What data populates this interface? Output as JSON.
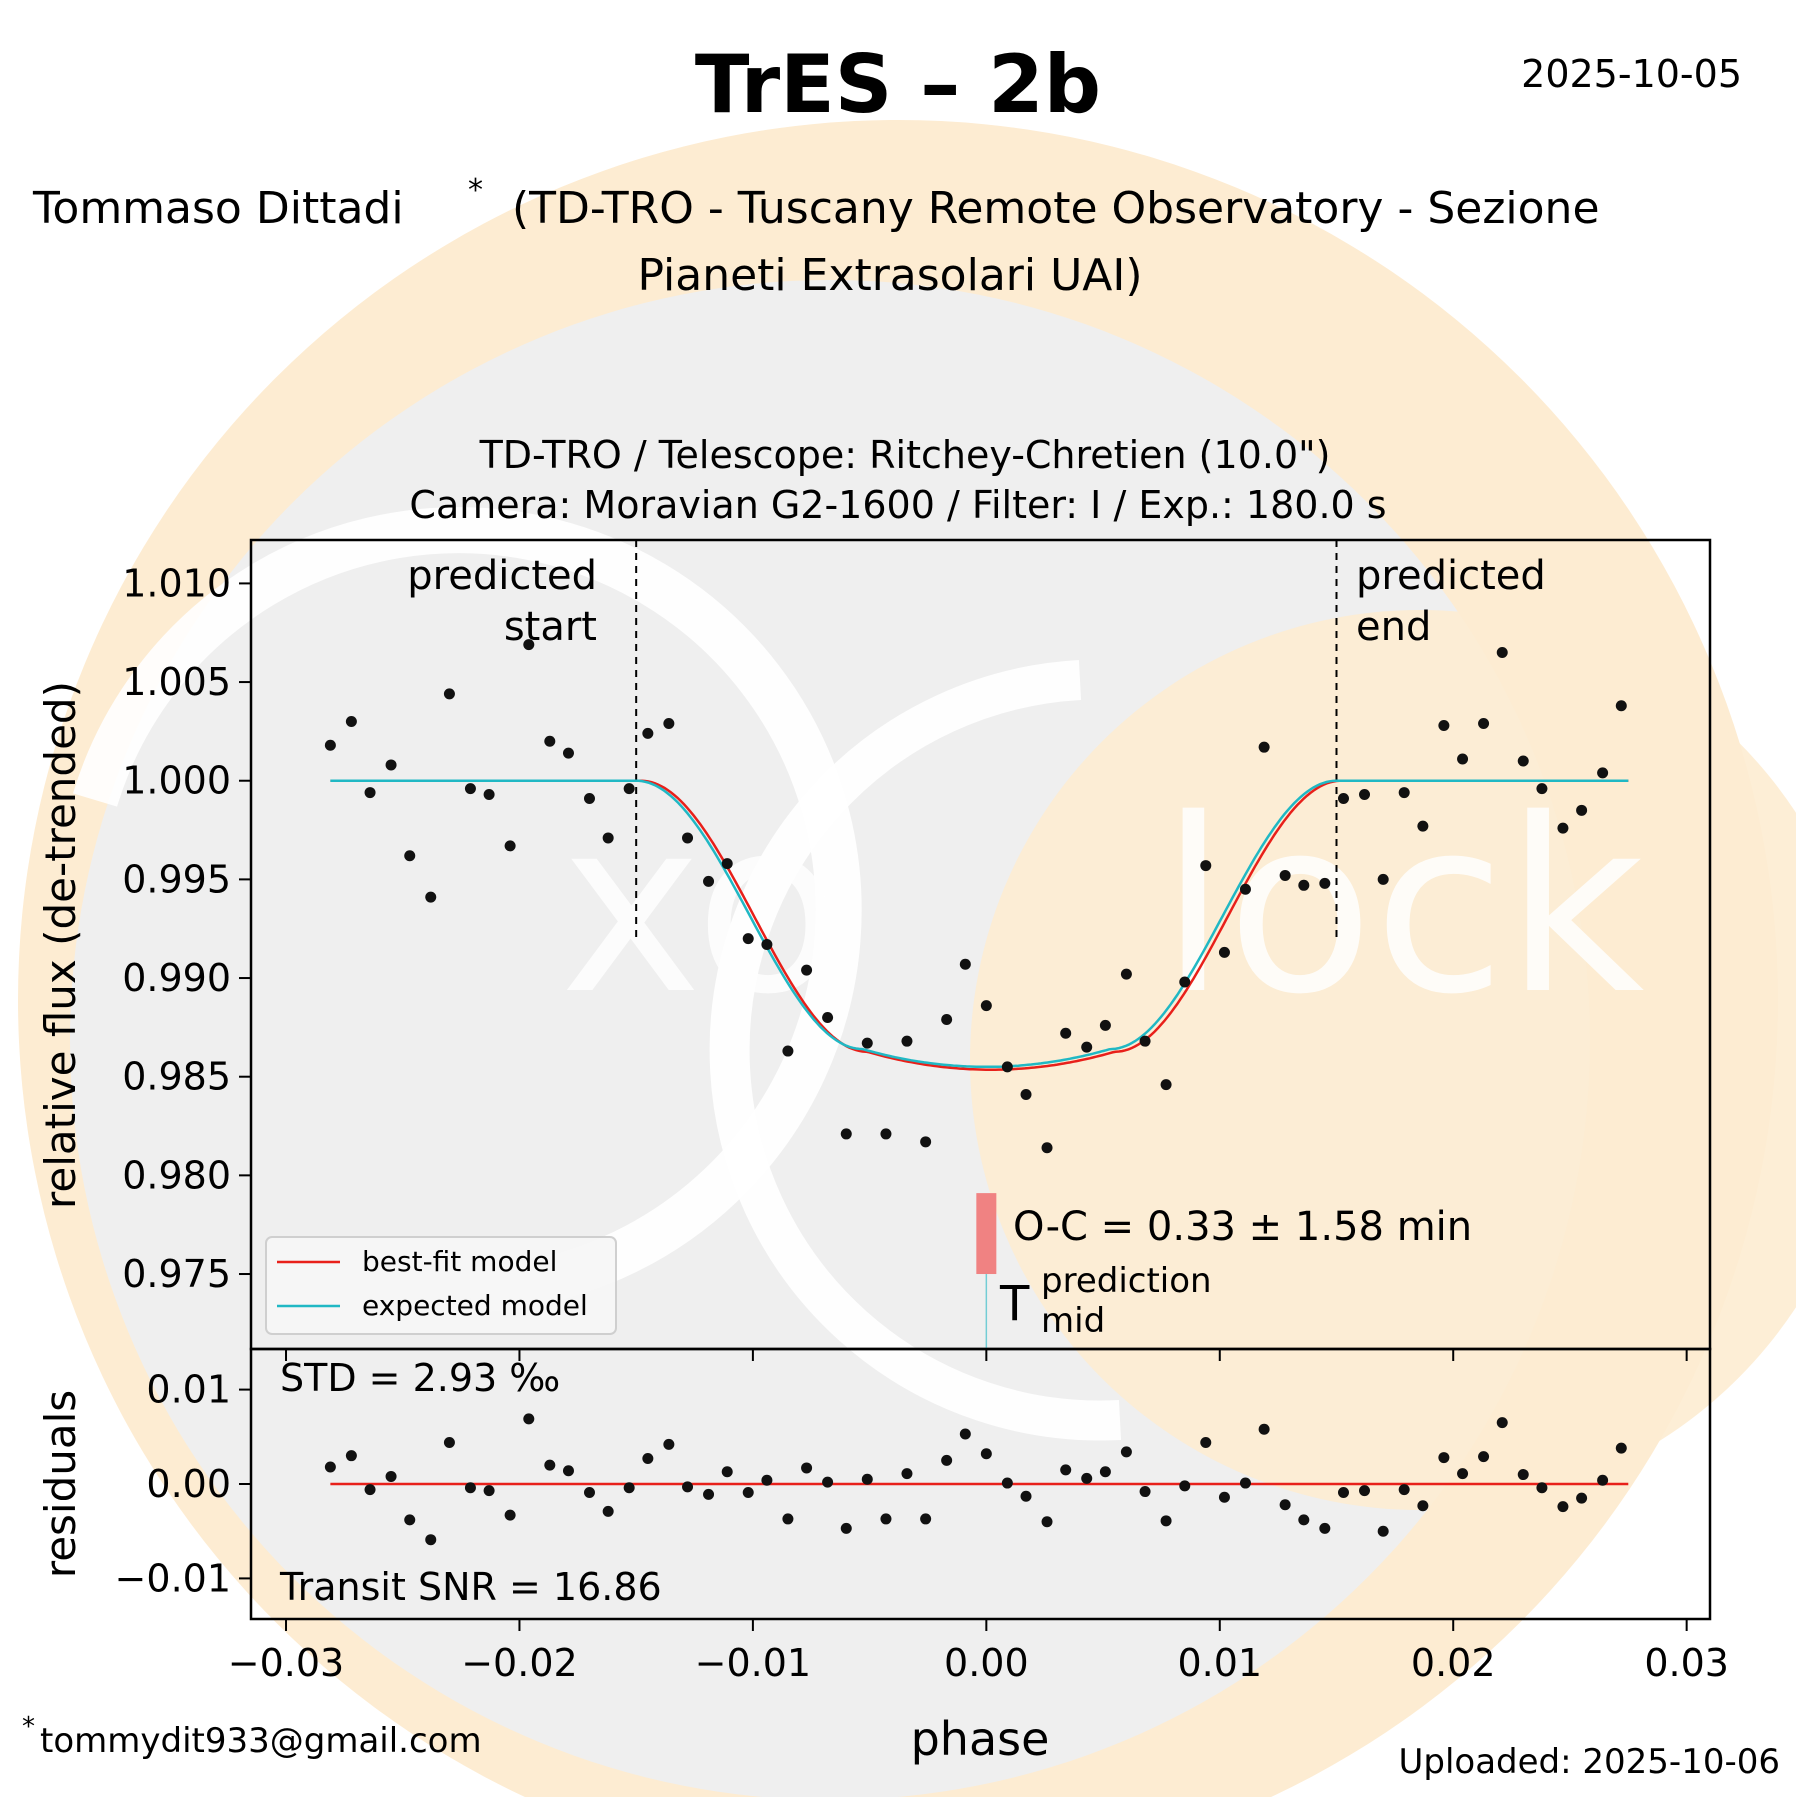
{
  "header": {
    "title": "TrES – 2b",
    "date": "2025-10-05",
    "observer_line1": "Tommaso Dittadi",
    "observer_star": "*",
    "observer_affil_line1": "(TD-TRO - Tuscany Remote Observatory - Sezione",
    "observer_affil_line2": "Pianeti Extrasolari UAI)"
  },
  "footer": {
    "email_star": "*",
    "email": "tommydit933@gmail.com",
    "uploaded": "Uploaded: 2025-10-06"
  },
  "colors": {
    "best_fit": "#e8201a",
    "expected": "#20b8c4",
    "points": "#111111",
    "oc_bar": "#f08282",
    "plot_bg": "#efefef",
    "halo": "#fdecd2"
  },
  "chart_data": {
    "type": "scatter",
    "subtitle_line1": "TD-TRO / Telescope: Ritchey-Chretien (10.0\")",
    "subtitle_line2": "Camera: Moravian G2-1600 / Filter: I / Exp.: 180.0 s",
    "xlabel": "phase",
    "ylabel_top": "relative flux (de-trended)",
    "ylabel_bottom": "residuals",
    "xlim": [
      -0.0315,
      0.031
    ],
    "ylim_top": [
      0.9712,
      1.0122
    ],
    "ylim_bottom": [
      -0.0143,
      0.0143
    ],
    "x_ticks": [
      -0.03,
      -0.02,
      -0.01,
      0.0,
      0.01,
      0.02,
      0.03
    ],
    "x_tick_labels": [
      "−0.03",
      "−0.02",
      "−0.01",
      "0.00",
      "0.01",
      "0.02",
      "0.03"
    ],
    "y_ticks_top": [
      0.975,
      0.98,
      0.985,
      0.99,
      0.995,
      1.0,
      1.005,
      1.01
    ],
    "y_tick_labels_top": [
      "0.975",
      "0.980",
      "0.985",
      "0.990",
      "0.995",
      "1.000",
      "1.005",
      "1.010"
    ],
    "y_ticks_bottom": [
      -0.01,
      0.0,
      0.01
    ],
    "y_tick_labels_bottom": [
      "−0.01",
      "0.00",
      "0.01"
    ],
    "predicted_start": -0.015,
    "predicted_end": 0.015,
    "predicted_start_label": [
      "predicted",
      "start"
    ],
    "predicted_end_label": [
      "predicted",
      "end"
    ],
    "oc_text": "O-C = 0.33 ± 1.58 min",
    "oc_bar_flux_range": [
      0.975,
      0.9791
    ],
    "tmid_label_main": "T",
    "tmid_label_sup": "prediction",
    "tmid_label_sub": "mid",
    "std_text": "STD = 2.93 ‰",
    "snr_text": "Transit SNR = 16.86",
    "legend": [
      {
        "name": "best-fit model",
        "color": "#e8201a"
      },
      {
        "name": "expected model",
        "color": "#20b8c4"
      }
    ],
    "legend_position": "lower-left",
    "model_params": {
      "t1": 0.015,
      "t2": 0.0053,
      "depth": 0.0145
    },
    "points": [
      [
        -0.0281,
        1.0018
      ],
      [
        -0.0272,
        1.003
      ],
      [
        -0.0264,
        0.9994
      ],
      [
        -0.0255,
        1.0008
      ],
      [
        -0.0247,
        0.9962
      ],
      [
        -0.0238,
        0.9941
      ],
      [
        -0.023,
        1.0044
      ],
      [
        -0.0221,
        0.9996
      ],
      [
        -0.0213,
        0.9993
      ],
      [
        -0.0204,
        0.9967
      ],
      [
        -0.0196,
        1.0069
      ],
      [
        -0.0187,
        1.002
      ],
      [
        -0.0179,
        1.0014
      ],
      [
        -0.017,
        0.9991
      ],
      [
        -0.0162,
        0.9971
      ],
      [
        -0.0153,
        0.9996
      ],
      [
        -0.0145,
        1.0024
      ],
      [
        -0.0136,
        1.0029
      ],
      [
        -0.0128,
        0.9971
      ],
      [
        -0.0119,
        0.9949
      ],
      [
        -0.0111,
        0.9958
      ],
      [
        -0.0102,
        0.992
      ],
      [
        -0.0094,
        0.9917
      ],
      [
        -0.0085,
        0.9863
      ],
      [
        -0.0077,
        0.9904
      ],
      [
        -0.0068,
        0.988
      ],
      [
        -0.006,
        0.9821
      ],
      [
        -0.0051,
        0.9867
      ],
      [
        -0.0043,
        0.9821
      ],
      [
        -0.0034,
        0.9868
      ],
      [
        -0.0026,
        0.9817
      ],
      [
        -0.0017,
        0.9879
      ],
      [
        -0.0009,
        0.9907
      ],
      [
        0.0,
        0.9886
      ],
      [
        0.0009,
        0.9855
      ],
      [
        0.0017,
        0.9841
      ],
      [
        0.0026,
        0.9814
      ],
      [
        0.0034,
        0.9872
      ],
      [
        0.0043,
        0.9865
      ],
      [
        0.0051,
        0.9876
      ],
      [
        0.006,
        0.9902
      ],
      [
        0.0068,
        0.9868
      ],
      [
        0.0077,
        0.9846
      ],
      [
        0.0085,
        0.9898
      ],
      [
        0.0094,
        0.9957
      ],
      [
        0.0102,
        0.9913
      ],
      [
        0.0111,
        0.9945
      ],
      [
        0.0119,
        1.0017
      ],
      [
        0.0128,
        0.9952
      ],
      [
        0.0136,
        0.9947
      ],
      [
        0.0145,
        0.9948
      ],
      [
        0.0153,
        0.9991
      ],
      [
        0.0162,
        0.9993
      ],
      [
        0.017,
        0.995
      ],
      [
        0.0179,
        0.9994
      ],
      [
        0.0187,
        0.9977
      ],
      [
        0.0196,
        1.0028
      ],
      [
        0.0204,
        1.0011
      ],
      [
        0.0213,
        1.0029
      ],
      [
        0.0221,
        1.0065
      ],
      [
        0.023,
        1.001
      ],
      [
        0.0238,
        0.9996
      ],
      [
        0.0247,
        0.9976
      ],
      [
        0.0255,
        0.9985
      ],
      [
        0.0264,
        1.0004
      ],
      [
        0.0272,
        1.0038
      ]
    ],
    "residuals": [
      [
        -0.0281,
        0.0018
      ],
      [
        -0.0272,
        0.003
      ],
      [
        -0.0264,
        -0.0006
      ],
      [
        -0.0255,
        0.0008
      ],
      [
        -0.0247,
        -0.0038
      ],
      [
        -0.0238,
        -0.0059
      ],
      [
        -0.023,
        0.0044
      ],
      [
        -0.0221,
        -0.0004
      ],
      [
        -0.0213,
        -0.0007
      ],
      [
        -0.0204,
        -0.0033
      ],
      [
        -0.0196,
        0.0069
      ],
      [
        -0.0187,
        0.002
      ],
      [
        -0.0179,
        0.0014
      ],
      [
        -0.017,
        -0.0009
      ],
      [
        -0.0162,
        -0.0029
      ],
      [
        -0.0153,
        -0.0004
      ],
      [
        -0.0145,
        0.0027
      ],
      [
        -0.0136,
        0.0042
      ],
      [
        -0.0128,
        -0.0003
      ],
      [
        -0.0119,
        -0.0011
      ],
      [
        -0.0111,
        0.0013
      ],
      [
        -0.0102,
        -0.0009
      ],
      [
        -0.0094,
        0.0004
      ],
      [
        -0.0085,
        -0.0037
      ],
      [
        -0.0077,
        0.0017
      ],
      [
        -0.0068,
        0.0002
      ],
      [
        -0.006,
        -0.0047
      ],
      [
        -0.0051,
        0.0005
      ],
      [
        -0.0043,
        -0.0037
      ],
      [
        -0.0034,
        0.0011
      ],
      [
        -0.0026,
        -0.0037
      ],
      [
        -0.0017,
        0.0025
      ],
      [
        -0.0009,
        0.0053
      ],
      [
        0.0,
        0.0032
      ],
      [
        0.0009,
        0.0001
      ],
      [
        0.0017,
        -0.0013
      ],
      [
        0.0026,
        -0.004
      ],
      [
        0.0034,
        0.0015
      ],
      [
        0.0043,
        0.0006
      ],
      [
        0.0051,
        0.0013
      ],
      [
        0.006,
        0.0034
      ],
      [
        0.0068,
        -0.0008
      ],
      [
        0.0077,
        -0.0039
      ],
      [
        0.0085,
        -0.0002
      ],
      [
        0.0094,
        0.0044
      ],
      [
        0.0102,
        -0.0014
      ],
      [
        0.0111,
        0.0001
      ],
      [
        0.0119,
        0.0058
      ],
      [
        0.0128,
        -0.0022
      ],
      [
        0.0136,
        -0.0038
      ],
      [
        0.0145,
        -0.0047
      ],
      [
        0.0153,
        -0.0009
      ],
      [
        0.0162,
        -0.0007
      ],
      [
        0.017,
        -0.005
      ],
      [
        0.0179,
        -0.0006
      ],
      [
        0.0187,
        -0.0023
      ],
      [
        0.0196,
        0.0028
      ],
      [
        0.0204,
        0.0011
      ],
      [
        0.0213,
        0.0029
      ],
      [
        0.0221,
        0.0065
      ],
      [
        0.023,
        0.001
      ],
      [
        0.0238,
        -0.0004
      ],
      [
        0.0247,
        -0.0024
      ],
      [
        0.0255,
        -0.0015
      ],
      [
        0.0264,
        0.0004
      ],
      [
        0.0272,
        0.0038
      ]
    ],
    "model_x_range": [
      -0.0281,
      0.0275
    ]
  }
}
